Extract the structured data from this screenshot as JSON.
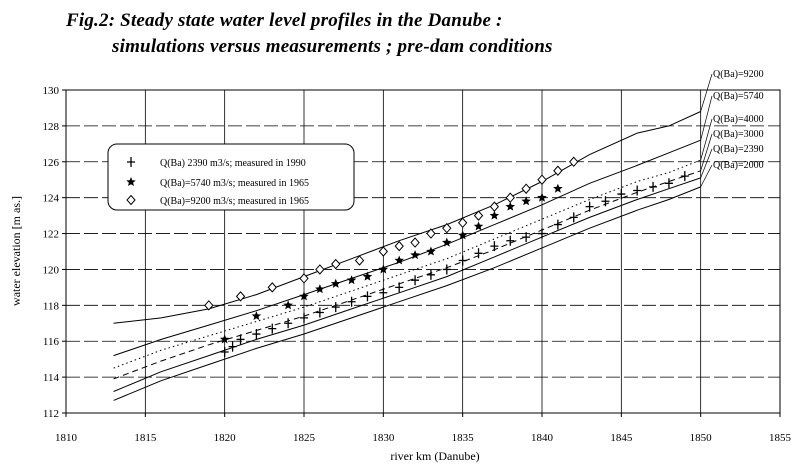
{
  "title_line1": "Fig.2: Steady state water level profiles in the Danube :",
  "title_line2": "simulations versus measurements ;  pre-dam conditions",
  "chart_data": {
    "type": "line",
    "xlabel": "river km (Danube)",
    "ylabel": "water elevation [m as.]",
    "xlim": [
      1810,
      1855
    ],
    "ylim": [
      112,
      130
    ],
    "xticks": [
      "1810",
      "1815",
      "1820",
      "1825",
      "1830",
      "1835",
      "1840",
      "1845",
      "1850",
      "1855"
    ],
    "yticks": [
      "112",
      "114",
      "116",
      "118",
      "120",
      "122",
      "124",
      "126",
      "128",
      "130"
    ],
    "grid": true,
    "legend_placement": "upper-left",
    "simulated_profiles": [
      {
        "name": "Q(Ba)=9200",
        "style": "solid",
        "x": [
          1813,
          1816,
          1819,
          1822,
          1825,
          1828,
          1831,
          1834,
          1837,
          1840,
          1843,
          1846,
          1848,
          1850
        ],
        "y": [
          117.0,
          117.3,
          117.8,
          118.6,
          119.6,
          120.6,
          121.6,
          122.5,
          123.6,
          124.9,
          126.4,
          127.6,
          128.0,
          128.8
        ]
      },
      {
        "name": "Q(Ba)=5740",
        "style": "solid",
        "x": [
          1813,
          1816,
          1819,
          1822,
          1825,
          1828,
          1831,
          1834,
          1837,
          1840,
          1843,
          1846,
          1848,
          1850
        ],
        "y": [
          115.2,
          116.1,
          116.9,
          117.7,
          118.6,
          119.5,
          120.4,
          121.4,
          122.5,
          123.6,
          124.8,
          125.8,
          126.5,
          127.2
        ]
      },
      {
        "name": "Q(Ba)=4000",
        "style": "dotted",
        "x": [
          1813,
          1816,
          1819,
          1822,
          1825,
          1828,
          1831,
          1834,
          1837,
          1840,
          1843,
          1846,
          1848,
          1850
        ],
        "y": [
          114.5,
          115.5,
          116.3,
          117.1,
          117.9,
          118.8,
          119.7,
          120.6,
          121.7,
          122.8,
          123.9,
          124.9,
          125.4,
          126.1
        ]
      },
      {
        "name": "Q(Ba)=3000",
        "style": "dashed",
        "x": [
          1813,
          1816,
          1819,
          1822,
          1825,
          1828,
          1831,
          1834,
          1837,
          1840,
          1843,
          1846,
          1848,
          1850
        ],
        "y": [
          113.9,
          114.9,
          115.8,
          116.6,
          117.4,
          118.3,
          119.2,
          120.1,
          121.1,
          122.2,
          123.3,
          124.3,
          124.9,
          125.5
        ]
      },
      {
        "name": "Q(Ba)=2390",
        "style": "solid",
        "x": [
          1813,
          1816,
          1819,
          1822,
          1825,
          1828,
          1831,
          1834,
          1837,
          1840,
          1843,
          1846,
          1848,
          1850
        ],
        "y": [
          113.2,
          114.3,
          115.2,
          116.1,
          116.9,
          117.8,
          118.7,
          119.6,
          120.7,
          121.8,
          122.9,
          123.9,
          124.5,
          125.1
        ]
      },
      {
        "name": "Q(Ba)=2000",
        "style": "solid",
        "x": [
          1813,
          1816,
          1819,
          1822,
          1825,
          1828,
          1831,
          1834,
          1837,
          1840,
          1843,
          1846,
          1848,
          1850
        ],
        "y": [
          112.7,
          113.8,
          114.7,
          115.6,
          116.4,
          117.3,
          118.2,
          119.1,
          120.1,
          121.2,
          122.3,
          123.3,
          123.9,
          124.6
        ]
      }
    ],
    "measurements": [
      {
        "name": "Q(Ba) 2390 m3/s; measured in 1990",
        "marker": "+",
        "x": [
          1820,
          1820.5,
          1821,
          1822,
          1823,
          1824,
          1825,
          1826,
          1827,
          1828,
          1829,
          1830,
          1831,
          1832,
          1833,
          1834,
          1835,
          1836,
          1837,
          1838,
          1839,
          1840,
          1841,
          1842,
          1843,
          1844,
          1845,
          1846,
          1847,
          1848,
          1849
        ],
        "y": [
          115.4,
          115.7,
          116.1,
          116.4,
          116.7,
          117.0,
          117.3,
          117.6,
          117.9,
          118.2,
          118.5,
          118.7,
          119.0,
          119.4,
          119.7,
          120.0,
          120.5,
          120.9,
          121.3,
          121.6,
          121.8,
          122.0,
          122.5,
          122.9,
          123.5,
          123.8,
          124.2,
          124.4,
          124.6,
          124.8,
          125.2
        ]
      },
      {
        "name": "Q(Ba)=5740 m3/s; measured in 1965",
        "marker": "star",
        "x": [
          1820,
          1822,
          1824,
          1825,
          1826,
          1827,
          1828,
          1829,
          1830,
          1831,
          1832,
          1833,
          1834,
          1835,
          1836,
          1837,
          1838,
          1839,
          1840,
          1841
        ],
        "y": [
          116.1,
          117.4,
          118.0,
          118.5,
          118.9,
          119.2,
          119.4,
          119.6,
          120.0,
          120.5,
          120.8,
          121.0,
          121.5,
          121.9,
          122.4,
          123.0,
          123.5,
          123.8,
          124.0,
          124.5
        ]
      },
      {
        "name": "Q(Ba)=9200 m3/s; measured in 1965",
        "marker": "diamond",
        "x": [
          1819,
          1821,
          1823,
          1825,
          1826,
          1827,
          1828.5,
          1830,
          1831,
          1832,
          1833,
          1834,
          1835,
          1836,
          1837,
          1838,
          1839,
          1840,
          1841,
          1842
        ],
        "y": [
          118.0,
          118.5,
          119.0,
          119.5,
          120.0,
          120.3,
          120.5,
          121.0,
          121.3,
          121.5,
          122.0,
          122.3,
          122.6,
          123.0,
          123.5,
          124.0,
          124.5,
          125.0,
          125.5,
          126.0
        ]
      }
    ]
  }
}
